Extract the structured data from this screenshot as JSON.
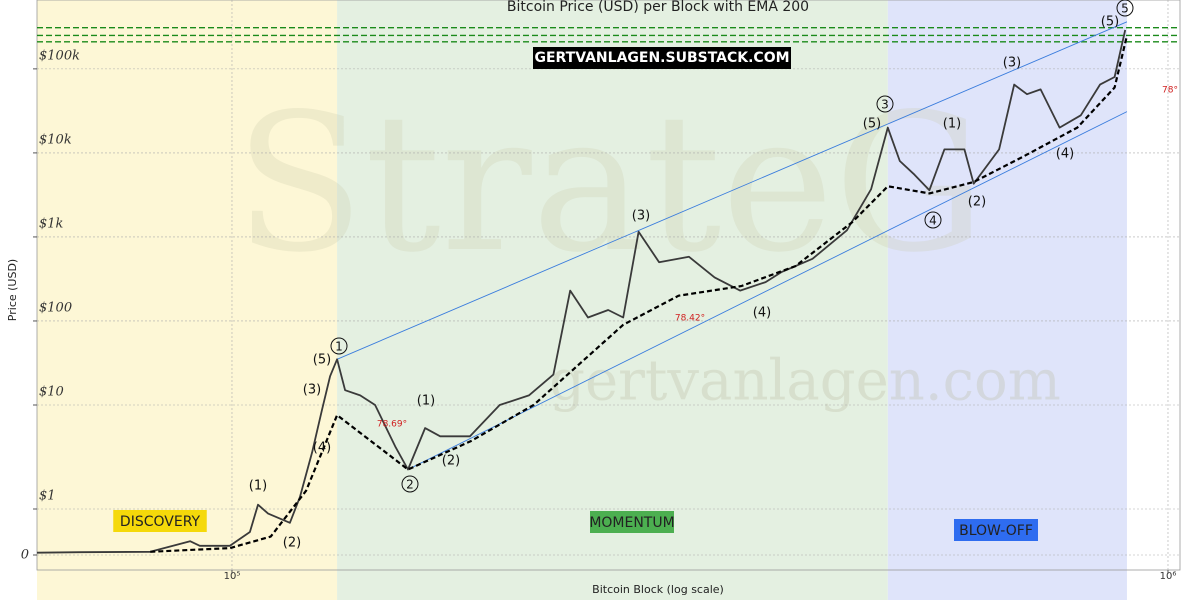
{
  "chart_data": {
    "type": "line",
    "title": "Bitcoin Price (USD) per Block with EMA 200",
    "x_label": "Bitcoin Block (log scale)",
    "y_label": "Price (USD)",
    "xscale": "log",
    "yscale": "symlog",
    "xlim": [
      61900,
      1030000
    ],
    "ylim": [
      0,
      660000
    ],
    "xticks": [
      {
        "value": 100000,
        "label": "10⁵"
      },
      {
        "value": 1000000,
        "label": "10⁶"
      }
    ],
    "yticks": [
      {
        "value": 0,
        "label": "0"
      },
      {
        "value": 1,
        "label": "$1"
      },
      {
        "value": 10,
        "label": "$10"
      },
      {
        "value": 100,
        "label": "$100"
      },
      {
        "value": 1000,
        "label": "$1k"
      },
      {
        "value": 10000,
        "label": "$10k"
      },
      {
        "value": 100000,
        "label": "$100k"
      }
    ],
    "grid": true,
    "banner": "GERTVANLAGEN.SUBSTACK.COM",
    "watermarks": [
      "StrateG",
      "gertvanlagen.com"
    ],
    "phases": [
      {
        "name": "DISCOVERY",
        "start": 61900,
        "end": 129500,
        "color": "#fdf7d6",
        "label_color": "#f5d90a",
        "text_color": "#222"
      },
      {
        "name": "MOMENTUM",
        "start": 129500,
        "end": 502000,
        "color": "#e4f0e1",
        "label_color": "#4caf50",
        "text_color": "#222"
      },
      {
        "name": "BLOW-OFF",
        "start": 502000,
        "end": 904000,
        "color": "#dfe4fa",
        "label_color": "#2e6cf0",
        "text_color": "#222"
      }
    ],
    "series": [
      {
        "color": "#3a3a3a",
        "style": "solid",
        "x": [
          61900,
          68800,
          81800,
          90200,
          92400,
          99500,
          104500,
          106600,
          109300,
          115300,
          118200,
          121800,
          124800,
          127300,
          129500,
          132100,
          137100,
          142200,
          149400,
          154200,
          160800,
          166900,
          179600,
          193200,
          207600,
          220500,
          229800,
          240100,
          252300,
          261800,
          271900,
          286000,
          307800,
          327800,
          349000,
          371600,
          386200,
          417100,
          453900,
          481700,
          502000,
          517000,
          536000,
          556000,
          577000,
          606000,
          620000,
          660000,
          685000,
          707000,
          731000,
          766000,
          807000,
          846000,
          877000,
          900000
        ],
        "values": [
          0.05,
          0.06,
          0.07,
          0.3,
          0.2,
          0.2,
          0.5,
          1.1,
          0.9,
          0.7,
          1.3,
          3.5,
          9,
          22,
          35,
          15,
          13,
          10,
          4,
          2.4,
          6,
          5,
          5,
          10,
          13,
          23,
          230,
          110,
          135,
          110,
          1150,
          500,
          580,
          330,
          230,
          290,
          380,
          550,
          1200,
          3700,
          20000,
          8000,
          5500,
          3600,
          11000,
          11000,
          4300,
          11000,
          65000,
          50000,
          57000,
          20000,
          28000,
          65000,
          80000,
          290000
        ]
      },
      {
        "color": "#000000",
        "style": "dashed",
        "x": [
          81800,
          99500,
          110000,
          120000,
          129500,
          154200,
          180000,
          210000,
          261800,
          300000,
          350000,
          400000,
          460000,
          502000,
          556000,
          620000,
          700000,
          800000,
          877000,
          904000
        ],
        "values": [
          0.07,
          0.15,
          0.4,
          1.5,
          8,
          2.4,
          4.5,
          10,
          90,
          200,
          260,
          450,
          1500,
          4000,
          3300,
          4500,
          9000,
          20000,
          60000,
          250000
        ]
      }
    ],
    "channels": {
      "color": "#3b7ddd",
      "lines": [
        {
          "x": [
            129500,
            904000
          ],
          "values": [
            35,
            363000
          ]
        },
        {
          "x": [
            154200,
            904000
          ],
          "values": [
            2.4,
            31000
          ]
        }
      ]
    },
    "levels": {
      "color": "#1a8a1a",
      "values": [
        309000,
        250000,
        210000
      ]
    },
    "wave_labels": [
      "(5)",
      "(3)",
      "(4)",
      "(1)",
      "(2)",
      "(1)",
      "(2)",
      "(3)",
      "(4)",
      "(5)",
      "(1)",
      "(2)",
      "(3)",
      "(4)",
      "(5)"
    ],
    "circled_labels": [
      "1",
      "2",
      "3",
      "4",
      "5"
    ],
    "angle_labels": [
      "78.69°",
      "78.42°",
      "78°"
    ]
  }
}
